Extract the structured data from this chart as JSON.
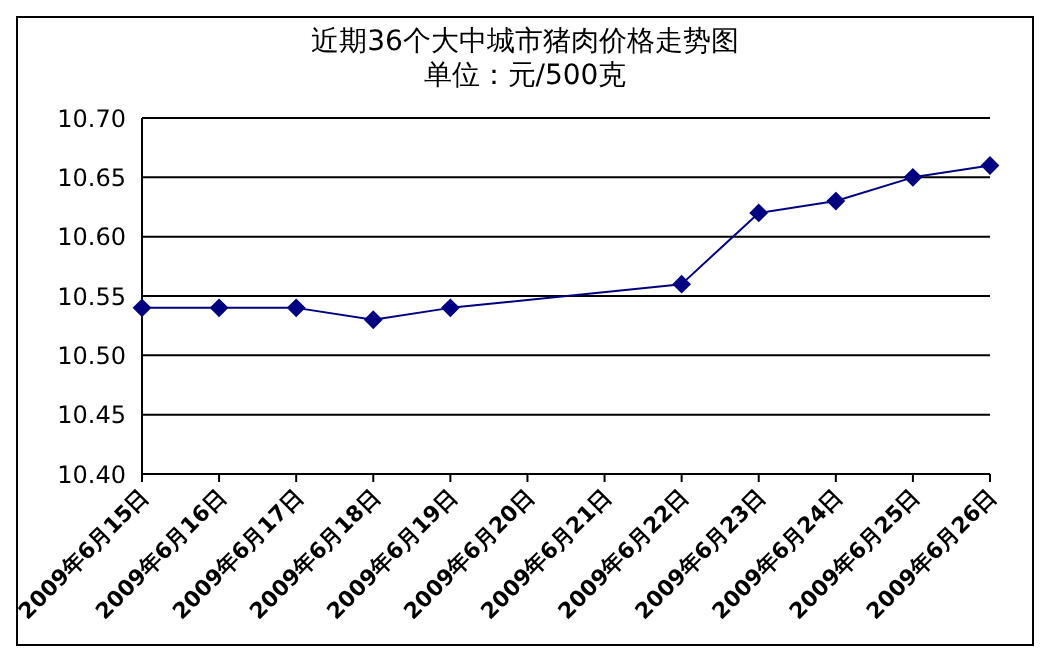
{
  "chart_data": {
    "type": "line",
    "title": "近期36个大中城市猪肉价格走势图",
    "subtitle": "单位：元/500克",
    "categories": [
      "2009年6月15日",
      "2009年6月16日",
      "2009年6月17日",
      "2009年6月18日",
      "2009年6月19日",
      "2009年6月20日",
      "2009年6月21日",
      "2009年6月22日",
      "2009年6月23日",
      "2009年6月24日",
      "2009年6月25日",
      "2009年6月26日"
    ],
    "series": [
      {
        "color": "#000080",
        "values": [
          10.54,
          10.54,
          10.54,
          10.53,
          10.54,
          null,
          null,
          10.56,
          10.62,
          10.63,
          10.65,
          10.66
        ]
      }
    ],
    "ylim": [
      10.4,
      10.7
    ],
    "yticks": [
      {
        "value": 10.4,
        "label": "10.40"
      },
      {
        "value": 10.45,
        "label": "10.45"
      },
      {
        "value": 10.5,
        "label": "10.50"
      },
      {
        "value": 10.55,
        "label": "10.55"
      },
      {
        "value": 10.6,
        "label": "10.60"
      },
      {
        "value": 10.65,
        "label": "10.65"
      },
      {
        "value": 10.7,
        "label": "10.70"
      }
    ],
    "grid": "y",
    "marker": "diamond",
    "legend": false
  }
}
